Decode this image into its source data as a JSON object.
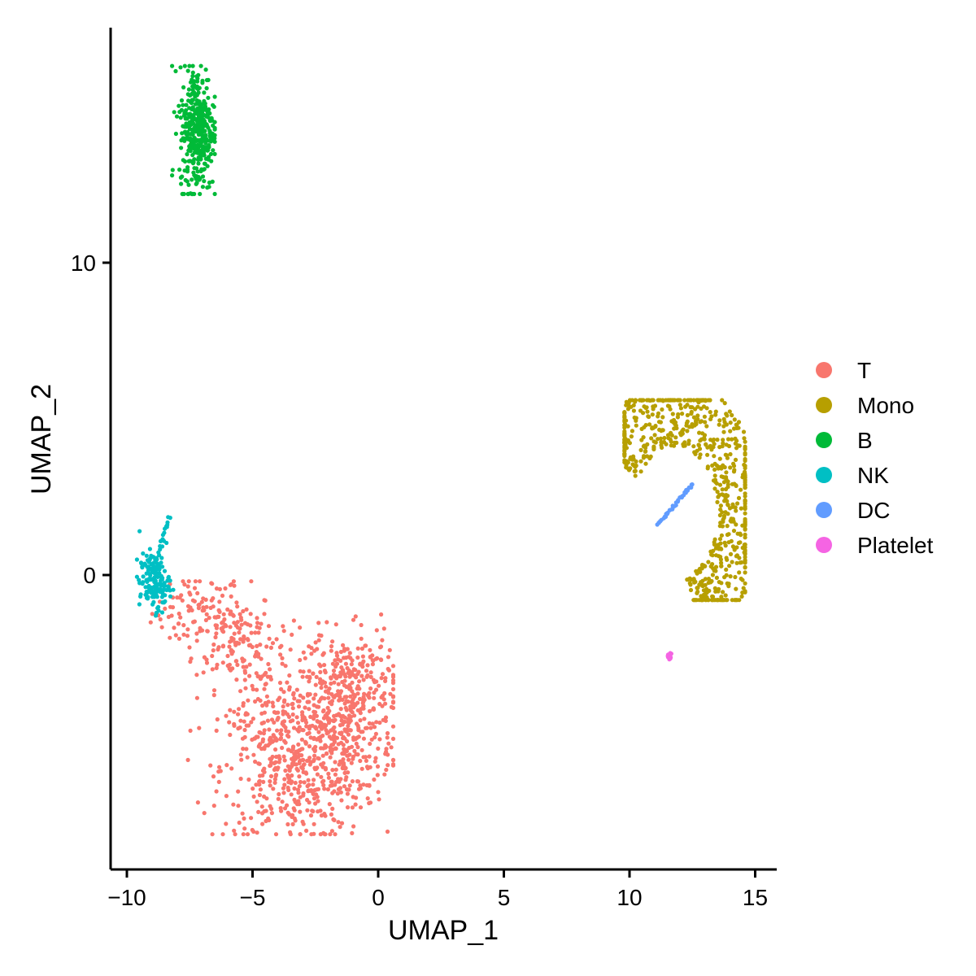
{
  "chart_data": {
    "type": "scatter",
    "title": "",
    "xlabel": "UMAP_1",
    "ylabel": "UMAP_2",
    "xlim": [
      -10.5,
      16
    ],
    "ylim": [
      -9.5,
      17.5
    ],
    "x_ticks": [
      -10,
      -5,
      0,
      5,
      10,
      15
    ],
    "x_tick_labels": [
      "−10",
      "−5",
      "0",
      "5",
      "10",
      "15"
    ],
    "y_ticks": [
      0,
      10
    ],
    "y_tick_labels": [
      "0",
      "10"
    ],
    "grid": false,
    "legend_position": "right",
    "series": [
      {
        "name": "T",
        "color": "#F8766D",
        "clusters": [
          {
            "cx": -7.2,
            "cy": -1.2,
            "sx": 0.9,
            "sy": 0.6,
            "n": 90
          },
          {
            "cx": -5.7,
            "cy": -2.0,
            "sx": 0.8,
            "sy": 0.8,
            "n": 120
          },
          {
            "cx": -4.6,
            "cy": -4.2,
            "sx": 0.9,
            "sy": 1.1,
            "n": 110
          },
          {
            "cx": -3.2,
            "cy": -6.2,
            "sx": 1.5,
            "sy": 1.2,
            "n": 420
          },
          {
            "cx": -1.6,
            "cy": -4.6,
            "sx": 1.1,
            "sy": 1.4,
            "n": 380
          },
          {
            "cx": -0.8,
            "cy": -3.6,
            "sx": 0.8,
            "sy": 0.9,
            "n": 130
          }
        ],
        "x_range": [
          -9.5,
          0.6
        ],
        "y_range": [
          -8.3,
          -0.2
        ]
      },
      {
        "name": "Mono",
        "color": "#B79F00",
        "arc": {
          "cx": 11.8,
          "cy": 2.0,
          "r": 2.6,
          "start_deg": 150,
          "end_deg": -75,
          "width": 0.9,
          "n": 700
        },
        "x_range": [
          9.8,
          14.6
        ],
        "y_range": [
          -0.8,
          5.6
        ]
      },
      {
        "name": "B",
        "color": "#00BA38",
        "clusters": [
          {
            "cx": -7.2,
            "cy": 14.3,
            "sx": 0.35,
            "sy": 1.0,
            "n": 380
          }
        ],
        "x_range": [
          -8.2,
          -6.5
        ],
        "y_range": [
          12.2,
          16.3
        ]
      },
      {
        "name": "NK",
        "color": "#00BFC4",
        "clusters": [
          {
            "cx": -8.9,
            "cy": -0.2,
            "sx": 0.3,
            "sy": 0.45,
            "n": 160
          }
        ],
        "tail": {
          "x0": -8.7,
          "y0": 0.8,
          "x1": -8.3,
          "y1": 1.9,
          "n": 15
        },
        "x_range": [
          -9.6,
          -8.0
        ],
        "y_range": [
          -1.3,
          1.9
        ]
      },
      {
        "name": "DC",
        "color": "#619CFF",
        "line": {
          "x0": 11.1,
          "y0": 1.6,
          "x1": 12.5,
          "y1": 2.9,
          "n": 38
        },
        "x_range": [
          11.1,
          12.5
        ],
        "y_range": [
          1.6,
          2.9
        ]
      },
      {
        "name": "Platelet",
        "color": "#F564E3",
        "clusters": [
          {
            "cx": 11.6,
            "cy": -2.6,
            "sx": 0.06,
            "sy": 0.06,
            "n": 14
          }
        ],
        "x_range": [
          11.5,
          11.7
        ],
        "y_range": [
          -2.7,
          -2.5
        ]
      }
    ]
  }
}
